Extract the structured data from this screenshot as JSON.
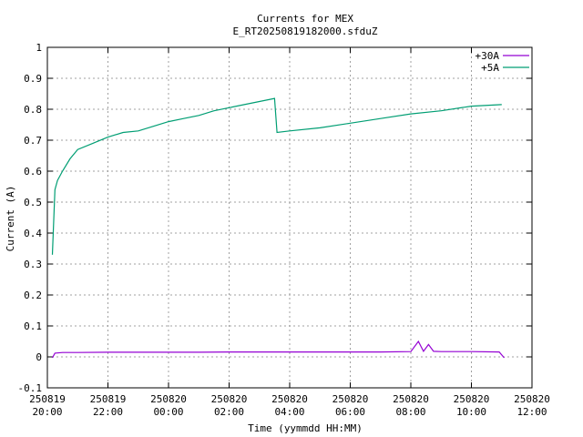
{
  "chart_data": {
    "type": "line",
    "title": "Currents for MEX",
    "subtitle": "E_RT20250819182000.sfduZ",
    "xlabel": "Time (yymmdd HH:MM)",
    "ylabel": "Current (A)",
    "xlim": [
      "2025-08-19 20:00",
      "2025-08-20 12:00"
    ],
    "ylim": [
      -0.1,
      1
    ],
    "x_ticks": [
      {
        "date": "250819",
        "time": "20:00"
      },
      {
        "date": "250819",
        "time": "22:00"
      },
      {
        "date": "250820",
        "time": "00:00"
      },
      {
        "date": "250820",
        "time": "02:00"
      },
      {
        "date": "250820",
        "time": "04:00"
      },
      {
        "date": "250820",
        "time": "06:00"
      },
      {
        "date": "250820",
        "time": "08:00"
      },
      {
        "date": "250820",
        "time": "10:00"
      },
      {
        "date": "250820",
        "time": "12:00"
      }
    ],
    "y_ticks": [
      "-0.1",
      "0",
      "0.1",
      "0.2",
      "0.3",
      "0.4",
      "0.5",
      "0.6",
      "0.7",
      "0.8",
      "0.9",
      "1"
    ],
    "grid": true,
    "legend_position": "top-right",
    "series": [
      {
        "name": "+30A",
        "color": "#9400d3",
        "points": [
          [
            "2025-08-19 20:10",
            -0.003
          ],
          [
            "2025-08-19 20:15",
            0.012
          ],
          [
            "2025-08-19 20:30",
            0.014
          ],
          [
            "2025-08-19 21:00",
            0.014
          ],
          [
            "2025-08-19 22:00",
            0.015
          ],
          [
            "2025-08-19 23:00",
            0.015
          ],
          [
            "2025-08-20 00:00",
            0.015
          ],
          [
            "2025-08-20 01:00",
            0.015
          ],
          [
            "2025-08-20 02:00",
            0.016
          ],
          [
            "2025-08-20 03:00",
            0.016
          ],
          [
            "2025-08-20 04:00",
            0.016
          ],
          [
            "2025-08-20 05:00",
            0.016
          ],
          [
            "2025-08-20 06:00",
            0.016
          ],
          [
            "2025-08-20 07:00",
            0.016
          ],
          [
            "2025-08-20 08:00",
            0.017
          ],
          [
            "2025-08-20 08:15",
            0.05
          ],
          [
            "2025-08-20 08:25",
            0.018
          ],
          [
            "2025-08-20 08:35",
            0.04
          ],
          [
            "2025-08-20 08:45",
            0.018
          ],
          [
            "2025-08-20 09:00",
            0.017
          ],
          [
            "2025-08-20 10:00",
            0.017
          ],
          [
            "2025-08-20 10:55",
            0.016
          ],
          [
            "2025-08-20 11:05",
            -0.003
          ]
        ]
      },
      {
        "name": "+5A",
        "color": "#009e73",
        "points": [
          [
            "2025-08-19 20:10",
            0.33
          ],
          [
            "2025-08-19 20:15",
            0.54
          ],
          [
            "2025-08-19 20:20",
            0.57
          ],
          [
            "2025-08-19 20:30",
            0.6
          ],
          [
            "2025-08-19 20:45",
            0.64
          ],
          [
            "2025-08-19 21:00",
            0.67
          ],
          [
            "2025-08-19 21:30",
            0.69
          ],
          [
            "2025-08-19 22:00",
            0.71
          ],
          [
            "2025-08-19 22:30",
            0.725
          ],
          [
            "2025-08-19 23:00",
            0.73
          ],
          [
            "2025-08-19 23:30",
            0.745
          ],
          [
            "2025-08-20 00:00",
            0.76
          ],
          [
            "2025-08-20 00:30",
            0.77
          ],
          [
            "2025-08-20 01:00",
            0.78
          ],
          [
            "2025-08-20 01:30",
            0.795
          ],
          [
            "2025-08-20 02:00",
            0.805
          ],
          [
            "2025-08-20 02:30",
            0.815
          ],
          [
            "2025-08-20 03:00",
            0.825
          ],
          [
            "2025-08-20 03:30",
            0.835
          ],
          [
            "2025-08-20 03:35",
            0.725
          ],
          [
            "2025-08-20 04:00",
            0.73
          ],
          [
            "2025-08-20 05:00",
            0.74
          ],
          [
            "2025-08-20 06:00",
            0.755
          ],
          [
            "2025-08-20 07:00",
            0.77
          ],
          [
            "2025-08-20 08:00",
            0.785
          ],
          [
            "2025-08-20 09:00",
            0.795
          ],
          [
            "2025-08-20 10:00",
            0.81
          ],
          [
            "2025-08-20 11:00",
            0.815
          ]
        ]
      }
    ]
  }
}
